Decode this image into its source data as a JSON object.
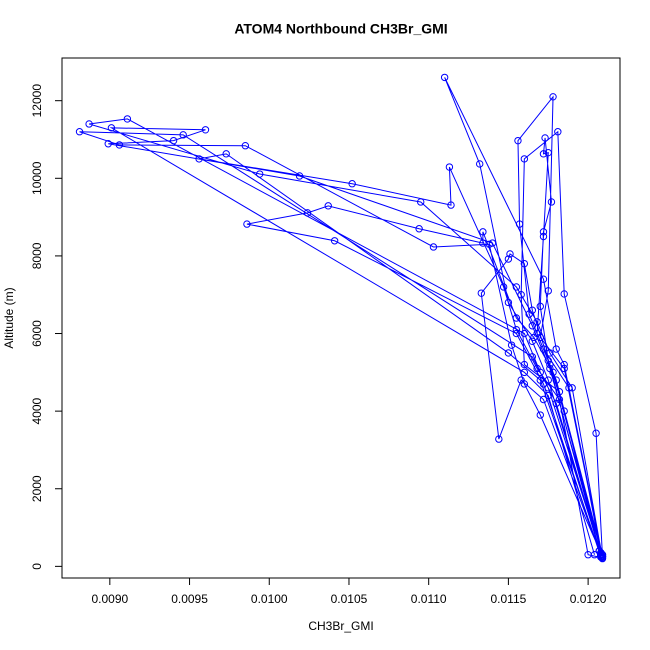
{
  "chart_data": {
    "type": "line",
    "title": "ATOM4 Northbound CH3Br_GMI",
    "x_label": "CH3Br_GMI",
    "y_label": "Altitude (m)",
    "color": "#0000ff",
    "x": [
      0.01209,
      0.0119,
      0.01176,
      0.01168,
      0.01155,
      0.01095,
      0.00994,
      0.00887,
      0.00911,
      0.0116,
      0.0117,
      0.0118,
      0.01208,
      0.01208,
      0.01175,
      0.01165,
      0.0115,
      0.01132,
      0.0111,
      0.01172,
      0.0118,
      0.01185,
      0.01209,
      0.01209,
      0.0117,
      0.0116,
      0.01152,
      0.01138,
      0.01103,
      0.00985,
      0.00906,
      0.00881,
      0.00946,
      0.01165,
      0.01175,
      0.01208,
      0.01208,
      0.01188,
      0.01172,
      0.01163,
      0.01157,
      0.01156,
      0.01178,
      0.01175,
      0.0117,
      0.01185,
      0.01209,
      0.01209,
      0.012,
      0.01182,
      0.01168,
      0.01155,
      0.01147,
      0.01113,
      0.01114,
      0.01052,
      0.00956,
      0.00973,
      0.0115,
      0.0117,
      0.01207,
      0.01207,
      0.01185,
      0.01176,
      0.01165,
      0.0116,
      0.01151,
      0.0115,
      0.01133,
      0.01144,
      0.01158,
      0.01172,
      0.01208,
      0.01208,
      0.01175,
      0.0117,
      0.01172,
      0.01177,
      0.01173,
      0.01172,
      0.01175,
      0.01172,
      0.01168,
      0.0118,
      0.01209,
      0.01209,
      0.01178,
      0.01166,
      0.01155,
      0.01134,
      0.01134,
      0.01094,
      0.01037,
      0.01024,
      0.00986,
      0.01041,
      0.01155,
      0.01172,
      0.01208,
      0.01208,
      0.01182,
      0.0116,
      0.01158,
      0.0116,
      0.01181,
      0.01185,
      0.01205,
      0.01209,
      0.01209,
      0.01176,
      0.01165,
      0.0114,
      0.01019,
      0.00899,
      0.0094,
      0.0096,
      0.00901,
      0.0116,
      0.01175,
      0.01204
    ],
    "values": [
      200,
      4600,
      5500,
      6300,
      7200,
      9390,
      10110,
      11400,
      11530,
      6000,
      5000,
      4200,
      300,
      300,
      4800,
      5800,
      6800,
      10370,
      12600,
      7400,
      5600,
      5200,
      250,
      250,
      3900,
      4700,
      5700,
      8300,
      8230,
      10840,
      10860,
      11200,
      11120,
      5400,
      4600,
      350,
      350,
      4600,
      5600,
      6500,
      8820,
      10970,
      12100,
      7100,
      5900,
      5100,
      220,
      220,
      300,
      4300,
      5100,
      6100,
      7200,
      10290,
      9310,
      9860,
      10500,
      10630,
      5500,
      4800,
      400,
      400,
      4000,
      5200,
      6600,
      7800,
      8050,
      7920,
      7040,
      3280,
      4800,
      4300,
      280,
      280,
      5300,
      6700,
      8620,
      9390,
      11040,
      10630,
      10660,
      8500,
      6000,
      4800,
      300,
      300,
      5000,
      5900,
      6400,
      8620,
      8330,
      8700,
      9290,
      9110,
      8820,
      8390,
      6000,
      4700,
      240,
      240,
      4500,
      5200,
      7000,
      10500,
      11200,
      7020,
      3430,
      260,
      260,
      5100,
      6200,
      8330,
      10060,
      10890,
      10970,
      11250,
      11300,
      5000,
      4400,
      300
    ],
    "xlim": [
      0.0087,
      0.0122
    ],
    "ylim": [
      -300,
      13100
    ],
    "xticks": [
      {
        "value": 0.009,
        "label": "0.0090"
      },
      {
        "value": 0.0095,
        "label": "0.0095"
      },
      {
        "value": 0.01,
        "label": "0.0100"
      },
      {
        "value": 0.0105,
        "label": "0.0105"
      },
      {
        "value": 0.011,
        "label": "0.0110"
      },
      {
        "value": 0.0115,
        "label": "0.0115"
      },
      {
        "value": 0.012,
        "label": "0.0120"
      }
    ],
    "yticks": [
      0,
      2000,
      4000,
      6000,
      8000,
      10000,
      12000
    ]
  }
}
